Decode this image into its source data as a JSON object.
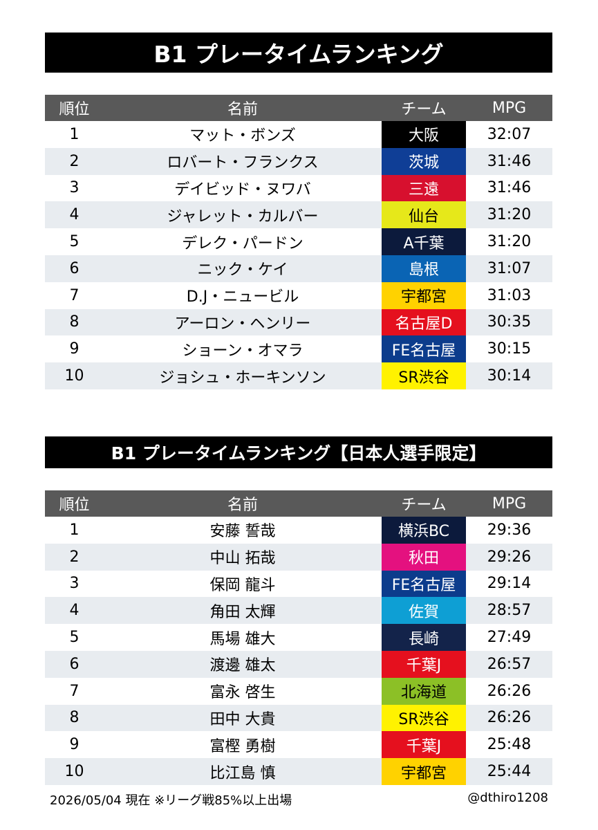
{
  "title1": "B1 プレータイムランキング",
  "title2": "B1 プレータイムランキング【日本人選手限定】",
  "headers": {
    "rank": "順位",
    "name": "名前",
    "team": "チーム",
    "mpg": "MPG"
  },
  "table1": [
    {
      "rank": "1",
      "name": "マット・ボンズ",
      "team": "大阪",
      "team_bg": "#000000",
      "team_fg": "#ffffff",
      "mpg": "32:07"
    },
    {
      "rank": "2",
      "name": "ロバート・フランクス",
      "team": "茨城",
      "team_bg": "#0f3e96",
      "team_fg": "#ffffff",
      "mpg": "31:46"
    },
    {
      "rank": "3",
      "name": "デイビッド・ヌワバ",
      "team": "三遠",
      "team_bg": "#d7102e",
      "team_fg": "#ffffff",
      "mpg": "31:46"
    },
    {
      "rank": "4",
      "name": "ジャレット・カルバー",
      "team": "仙台",
      "team_bg": "#e6e81a",
      "team_fg": "#000000",
      "mpg": "31:20"
    },
    {
      "rank": "5",
      "name": "デレク・パードン",
      "team": "A千葉",
      "team_bg": "#0c1a3c",
      "team_fg": "#ffffff",
      "mpg": "31:20"
    },
    {
      "rank": "6",
      "name": "ニック・ケイ",
      "team": "島根",
      "team_bg": "#0a64b4",
      "team_fg": "#ffffff",
      "mpg": "31:07"
    },
    {
      "rank": "7",
      "name": "D.J・ニュービル",
      "team": "宇都宮",
      "team_bg": "#ffd200",
      "team_fg": "#000000",
      "mpg": "31:03"
    },
    {
      "rank": "8",
      "name": "アーロン・ヘンリー",
      "team": "名古屋D",
      "team_bg": "#e5101e",
      "team_fg": "#ffffff",
      "mpg": "30:35"
    },
    {
      "rank": "9",
      "name": "ショーン・オマラ",
      "team": "FE名古屋",
      "team_bg": "#0c3c8c",
      "team_fg": "#ffffff",
      "mpg": "30:15"
    },
    {
      "rank": "10",
      "name": "ジョシュ・ホーキンソン",
      "team": "SR渋谷",
      "team_bg": "#fff200",
      "team_fg": "#000000",
      "mpg": "30:14"
    }
  ],
  "table2": [
    {
      "rank": "1",
      "name": "安藤 誓哉",
      "team": "横浜BC",
      "team_bg": "#0c1a3c",
      "team_fg": "#ffffff",
      "mpg": "29:36"
    },
    {
      "rank": "2",
      "name": "中山 拓哉",
      "team": "秋田",
      "team_bg": "#e4117f",
      "team_fg": "#ffffff",
      "mpg": "29:26"
    },
    {
      "rank": "3",
      "name": "保岡 龍斗",
      "team": "FE名古屋",
      "team_bg": "#0c3c8c",
      "team_fg": "#ffffff",
      "mpg": "29:14"
    },
    {
      "rank": "4",
      "name": "角田 太輝",
      "team": "佐賀",
      "team_bg": "#0e9fd4",
      "team_fg": "#ffffff",
      "mpg": "28:57"
    },
    {
      "rank": "5",
      "name": "馬場 雄大",
      "team": "長崎",
      "team_bg": "#13234a",
      "team_fg": "#ffffff",
      "mpg": "27:49"
    },
    {
      "rank": "6",
      "name": "渡邊 雄太",
      "team": "千葉J",
      "team_bg": "#e5101e",
      "team_fg": "#ffffff",
      "mpg": "26:57"
    },
    {
      "rank": "7",
      "name": "富永 啓生",
      "team": "北海道",
      "team_bg": "#8cc026",
      "team_fg": "#000000",
      "mpg": "26:26"
    },
    {
      "rank": "8",
      "name": "田中 大貴",
      "team": "SR渋谷",
      "team_bg": "#fff200",
      "team_fg": "#000000",
      "mpg": "26:26"
    },
    {
      "rank": "9",
      "name": "富樫 勇樹",
      "team": "千葉J",
      "team_bg": "#e5101e",
      "team_fg": "#ffffff",
      "mpg": "25:48"
    },
    {
      "rank": "10",
      "name": "比江島 慎",
      "team": "宇都宮",
      "team_bg": "#ffd200",
      "team_fg": "#000000",
      "mpg": "25:44"
    }
  ],
  "footer_left": "2026/05/04 現在 ※リーグ戦85%以上出場",
  "footer_right": "@dthiro1208"
}
